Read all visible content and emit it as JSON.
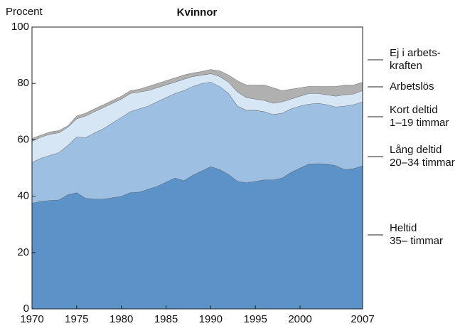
{
  "chart_data": {
    "type": "stacked-area",
    "title": "Kvinnor",
    "y_label": "Procent",
    "x": [
      1970,
      1971,
      1972,
      1973,
      1974,
      1975,
      1976,
      1977,
      1978,
      1979,
      1980,
      1981,
      1982,
      1983,
      1984,
      1985,
      1986,
      1987,
      1988,
      1989,
      1990,
      1991,
      1992,
      1993,
      1994,
      1995,
      1996,
      1997,
      1998,
      1999,
      2000,
      2001,
      2002,
      2003,
      2004,
      2005,
      2006,
      2007
    ],
    "xlim": [
      1970,
      2007
    ],
    "xticks": [
      1970,
      1975,
      1980,
      1985,
      1990,
      1995,
      2000,
      2007
    ],
    "ylim": [
      0,
      100
    ],
    "yticks": [
      0,
      20,
      40,
      60,
      80,
      100
    ],
    "series": [
      {
        "name": "Heltid\n35– timmar",
        "color": "#5b93c9",
        "values": [
          37.5,
          38.2,
          38.5,
          38.7,
          40.5,
          41.3,
          39.3,
          39,
          39,
          39.5,
          40,
          41.3,
          41.5,
          42.5,
          43.5,
          45,
          46.5,
          45.5,
          47.5,
          49,
          50.5,
          49.5,
          47.8,
          45.3,
          44.8,
          45.3,
          45.8,
          45.8,
          46.5,
          48.5,
          50,
          51.5,
          51.6,
          51.5,
          50.8,
          49.5,
          49.8,
          50.8
        ]
      },
      {
        "name": "Lång deltid\n20–34 timmar",
        "color": "#9dbfe2",
        "values": [
          14.5,
          15.3,
          16,
          16.8,
          17.5,
          19.7,
          21.5,
          23.5,
          25,
          26.5,
          28,
          28.7,
          29.5,
          29.5,
          30,
          30,
          30,
          32,
          31.5,
          31,
          30,
          29.5,
          28.7,
          26.7,
          25.7,
          25.2,
          24.2,
          23.2,
          23,
          22.5,
          22,
          21.2,
          21.4,
          21,
          20.9,
          22.5,
          22.7,
          22.7
        ]
      },
      {
        "name": "Kort deltid\n1–19 timmar",
        "color": "#d6e6f4",
        "values": [
          7.5,
          7.5,
          7.5,
          7,
          6.5,
          6.5,
          7.7,
          7.5,
          7.5,
          7,
          6.5,
          6.5,
          6,
          5.5,
          5,
          4.5,
          4,
          4,
          3.5,
          3,
          3,
          3.5,
          4,
          5,
          4.5,
          4,
          4,
          4,
          4,
          3.5,
          3.5,
          3.8,
          3.5,
          3.5,
          3.8,
          4,
          3.8,
          4
        ]
      },
      {
        "name": "Arbetslös",
        "color": "#b0b0b0",
        "values": [
          1,
          0.7,
          0.8,
          0.8,
          0.5,
          1,
          1,
          1,
          1,
          1,
          1,
          1,
          1,
          1.5,
          1.5,
          1.5,
          1.5,
          1.5,
          1.3,
          1.3,
          1.5,
          2,
          2.5,
          4,
          4.5,
          5,
          5.5,
          5.5,
          4,
          3.5,
          3,
          2.5,
          2.5,
          3,
          3.5,
          3.5,
          3.2,
          3
        ]
      },
      {
        "name": "Ej i arbets-\nkraften",
        "color": "#ffffff",
        "values": [
          39.5,
          38.3,
          37.2,
          36.7,
          35,
          31.5,
          30.5,
          29,
          27.5,
          26,
          24.5,
          22.5,
          22,
          21,
          20,
          19,
          18,
          17,
          16.2,
          15.7,
          15,
          15.5,
          17,
          19,
          20.5,
          20.5,
          20.5,
          21.5,
          22.5,
          22,
          21.5,
          21,
          21,
          21,
          21,
          20.5,
          20.5,
          19.5
        ]
      }
    ]
  }
}
